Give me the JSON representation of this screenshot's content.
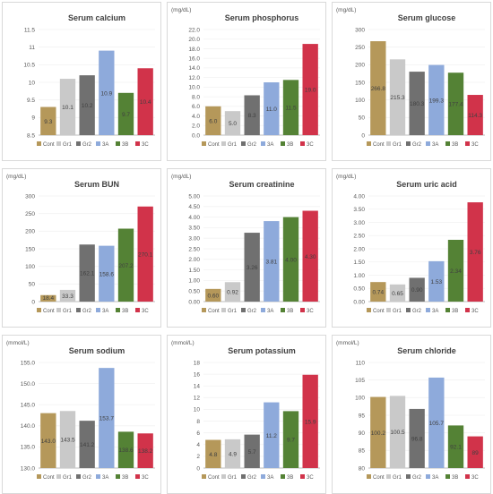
{
  "legend_labels": [
    "Cont",
    "Gr1",
    "Gr2",
    "3A",
    "3B",
    "3C"
  ],
  "colors": [
    "#b5985a",
    "#c9c9c9",
    "#707070",
    "#8eaadb",
    "#548235",
    "#d1334a"
  ],
  "chart_data": [
    {
      "type": "bar",
      "title": "Serum calcium",
      "unit": "",
      "categories": [
        "Cont",
        "Gr1",
        "Gr2",
        "3A",
        "3B",
        "3C"
      ],
      "values": [
        9.3,
        10.1,
        10.2,
        10.9,
        9.7,
        10.4
      ],
      "labels": [
        "9.3",
        "10.1",
        "10.2",
        "10.9",
        "9.7",
        "10.4"
      ],
      "ylim": [
        8.5,
        11.5
      ],
      "yticks": [
        8.5,
        9,
        9.5,
        10,
        10.5,
        11,
        11.5
      ],
      "ytick_labels": [
        "8.5",
        "9",
        "9.5",
        "10",
        "10.5",
        "11",
        "11.5"
      ],
      "legend": "bottom"
    },
    {
      "type": "bar",
      "title": "Serum phosphorus",
      "unit": "(mg/dL)",
      "categories": [
        "Cont",
        "Gr1",
        "Gr2",
        "3A",
        "3B",
        "3C"
      ],
      "values": [
        6.0,
        5.0,
        8.3,
        11.0,
        11.5,
        19.0
      ],
      "labels": [
        "6.0",
        "5.0",
        "8.3",
        "11.0",
        "11.5",
        "19.0"
      ],
      "ylim": [
        0,
        22
      ],
      "yticks": [
        0,
        2,
        4,
        6,
        8,
        10,
        12,
        14,
        16,
        18,
        20,
        22
      ],
      "ytick_labels": [
        "0.0",
        "2.0",
        "4.0",
        "6.0",
        "8.0",
        "10.0",
        "12.0",
        "14.0",
        "16.0",
        "18.0",
        "20.0",
        "22.0"
      ],
      "legend": "bottom"
    },
    {
      "type": "bar",
      "title": "Serum glucose",
      "unit": "(mg/dL)",
      "categories": [
        "Cont",
        "Gr1",
        "Gr2",
        "3A",
        "3B",
        "3C"
      ],
      "values": [
        266.8,
        215.3,
        180.3,
        199.3,
        177.4,
        114.3
      ],
      "labels": [
        "266.8",
        "215.3",
        "180.3",
        "199.3",
        "177.4",
        "114.3"
      ],
      "ylim": [
        0,
        300
      ],
      "yticks": [
        0,
        50,
        100,
        150,
        200,
        250,
        300
      ],
      "ytick_labels": [
        "0",
        "50",
        "100",
        "150",
        "200",
        "250",
        "300"
      ],
      "legend": "bottom"
    },
    {
      "type": "bar",
      "title": "Serum BUN",
      "unit": "(mg/dL)",
      "categories": [
        "Cont",
        "Gr1",
        "Gr2",
        "3A",
        "3B",
        "3C"
      ],
      "values": [
        18.4,
        33.3,
        162.1,
        158.6,
        207.2,
        270.1
      ],
      "labels": [
        "18.4",
        "33.3",
        "162.1",
        "158.6",
        "207.2",
        "270.1"
      ],
      "ylim": [
        0,
        300
      ],
      "yticks": [
        0,
        50,
        100,
        150,
        200,
        250,
        300
      ],
      "ytick_labels": [
        "0",
        "50",
        "100",
        "150",
        "200",
        "250",
        "300"
      ],
      "legend": "bottom"
    },
    {
      "type": "bar",
      "title": "Serum creatinine",
      "unit": "(mg/dL)",
      "categories": [
        "Cont",
        "Gr1",
        "Gr2",
        "3A",
        "3B",
        "3C"
      ],
      "values": [
        0.6,
        0.92,
        3.26,
        3.81,
        4.0,
        4.3
      ],
      "labels": [
        "0.60",
        "0.92",
        "3.26",
        "3.81",
        "4.00",
        "4.30"
      ],
      "ylim": [
        0,
        5
      ],
      "yticks": [
        0,
        0.5,
        1,
        1.5,
        2,
        2.5,
        3,
        3.5,
        4,
        4.5,
        5
      ],
      "ytick_labels": [
        "0.00",
        "0.50",
        "1.00",
        "1.50",
        "2.00",
        "2.50",
        "3.00",
        "3.50",
        "4.00",
        "4.50",
        "5.00"
      ],
      "legend": "bottom"
    },
    {
      "type": "bar",
      "title": "Serum uric acid",
      "unit": "(mg/dL)",
      "categories": [
        "Cont",
        "Gr1",
        "Gr2",
        "3A",
        "3B",
        "3C"
      ],
      "values": [
        0.74,
        0.65,
        0.9,
        1.53,
        2.34,
        3.76
      ],
      "labels": [
        "0.74",
        "0.65",
        "0.90",
        "1.53",
        "2.34",
        "3.76"
      ],
      "ylim": [
        0,
        4
      ],
      "yticks": [
        0,
        0.5,
        1,
        1.5,
        2,
        2.5,
        3,
        3.5,
        4
      ],
      "ytick_labels": [
        "0.00",
        "0.50",
        "1.00",
        "1.50",
        "2.00",
        "2.50",
        "3.00",
        "3.50",
        "4.00"
      ],
      "legend": "bottom"
    },
    {
      "type": "bar",
      "title": "Serum sodium",
      "unit": "(mmol/L)",
      "categories": [
        "Cont",
        "Gr1",
        "Gr2",
        "3A",
        "3B",
        "3C"
      ],
      "values": [
        143.0,
        143.5,
        141.2,
        153.7,
        138.6,
        138.2
      ],
      "labels": [
        "143.0",
        "143.5",
        "141.2",
        "153.7",
        "138.6",
        "138.2"
      ],
      "ylim": [
        130,
        155
      ],
      "yticks": [
        130,
        135,
        140,
        145,
        150,
        155
      ],
      "ytick_labels": [
        "130.0",
        "135.0",
        "140.0",
        "145.0",
        "150.0",
        "155.0"
      ],
      "legend": "bottom"
    },
    {
      "type": "bar",
      "title": "Serum potassium",
      "unit": "(mmol/L)",
      "categories": [
        "Cont",
        "Gr1",
        "Gr2",
        "3A",
        "3B",
        "3C"
      ],
      "values": [
        4.8,
        4.9,
        5.7,
        11.2,
        9.7,
        15.9
      ],
      "labels": [
        "4.8",
        "4.9",
        "5.7",
        "11.2",
        "9.7",
        "15.9"
      ],
      "ylim": [
        0,
        18
      ],
      "yticks": [
        0,
        2,
        4,
        6,
        8,
        10,
        12,
        14,
        16,
        18
      ],
      "ytick_labels": [
        "0",
        "2",
        "4",
        "6",
        "8",
        "10",
        "12",
        "14",
        "16",
        "18"
      ],
      "legend": "bottom"
    },
    {
      "type": "bar",
      "title": "Serum chloride",
      "unit": "(mmol/L)",
      "categories": [
        "Cont",
        "Gr1",
        "Gr2",
        "3A",
        "3B",
        "3C"
      ],
      "values": [
        100.2,
        100.5,
        96.8,
        105.7,
        92.1,
        89.0
      ],
      "labels": [
        "100.2",
        "100.5",
        "96.8",
        "105.7",
        "92.1",
        "89"
      ],
      "ylim": [
        80,
        110
      ],
      "yticks": [
        80,
        85,
        90,
        95,
        100,
        105,
        110
      ],
      "ytick_labels": [
        "80",
        "85",
        "90",
        "95",
        "100",
        "105",
        "110"
      ],
      "legend": "bottom"
    }
  ]
}
